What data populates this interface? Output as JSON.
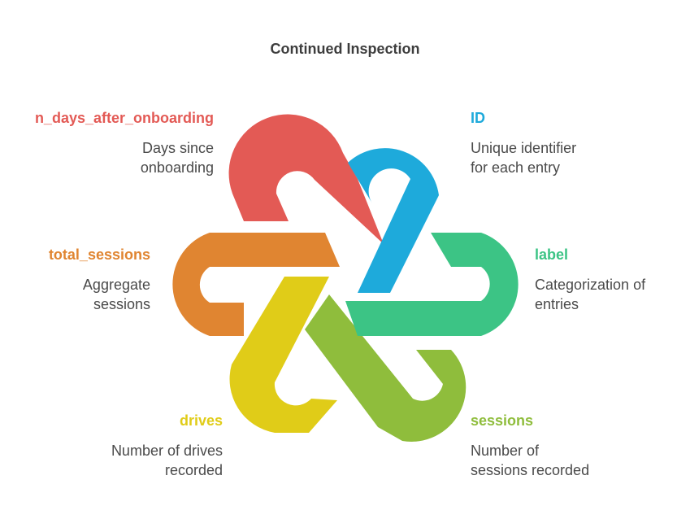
{
  "title": "Continued Inspection",
  "items": [
    {
      "key": "n_days",
      "label": "n_days_after_onboarding",
      "desc": [
        "Days since",
        "onboarding"
      ],
      "color": "#e35a55"
    },
    {
      "key": "id",
      "label": "ID",
      "desc": [
        "Unique identifier",
        "for each entry"
      ],
      "color": "#1eaadb"
    },
    {
      "key": "total_sessions",
      "label": "total_sessions",
      "desc": [
        "Aggregate",
        "sessions"
      ],
      "color": "#e08531"
    },
    {
      "key": "label",
      "label": "label",
      "desc": [
        "Categorization of",
        "entries"
      ],
      "color": "#3cc485"
    },
    {
      "key": "drives",
      "label": "drives",
      "desc": [
        "Number of drives",
        "recorded"
      ],
      "color": "#e0cc18"
    },
    {
      "key": "sessions",
      "label": "sessions",
      "desc": [
        "Number of",
        "sessions recorded"
      ],
      "color": "#8fbd3c"
    }
  ]
}
